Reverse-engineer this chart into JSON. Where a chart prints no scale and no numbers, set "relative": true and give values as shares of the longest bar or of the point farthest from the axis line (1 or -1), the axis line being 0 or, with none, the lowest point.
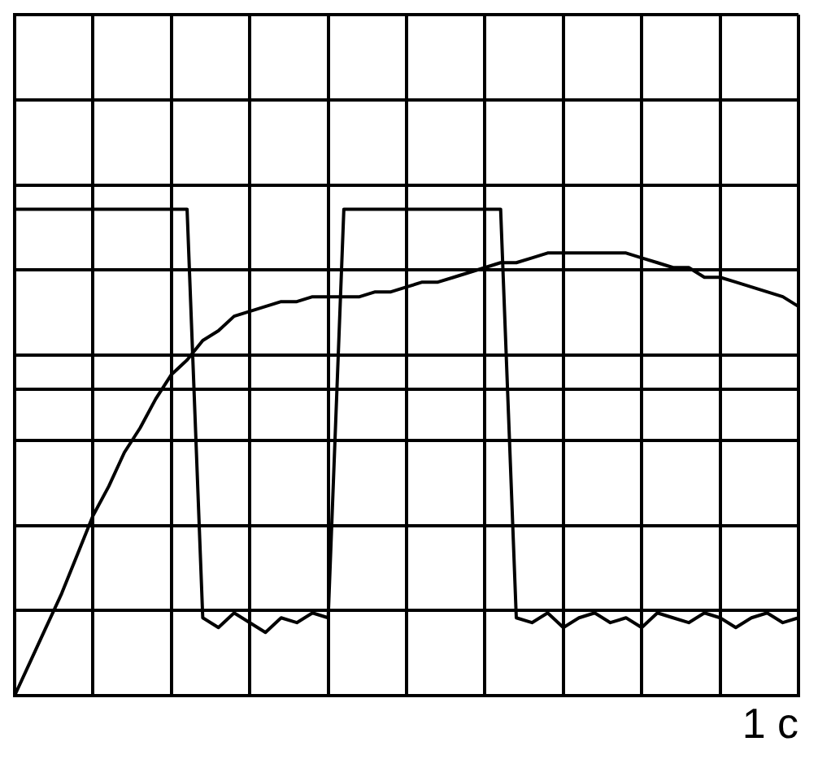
{
  "chart_data": {
    "type": "line",
    "relative": true,
    "grid": true,
    "legend": false,
    "marker": "none",
    "line_style": "solid",
    "categories": [
      null,
      null,
      null,
      null,
      null,
      null,
      null,
      null,
      null,
      null,
      null,
      null,
      null,
      null,
      null,
      null,
      null,
      null,
      null,
      null,
      null,
      null,
      null,
      null,
      null,
      null,
      null,
      null,
      null,
      null,
      null,
      null,
      null,
      null,
      null,
      null,
      null,
      null,
      null,
      null,
      null,
      null,
      null,
      null,
      null,
      null,
      null,
      null,
      null,
      null,
      null
    ],
    "series": [
      {
        "color": "#000000",
        "values": [
          1,
          1,
          1,
          1,
          1,
          1,
          1,
          1,
          1,
          1,
          1,
          1,
          0.16,
          0.14,
          0.17,
          0.15,
          0.13,
          0.16,
          0.15,
          0.17,
          0.16,
          1,
          1,
          1,
          1,
          1,
          1,
          1,
          1,
          1,
          1,
          1,
          0.16,
          0.15,
          0.17,
          0.14,
          0.16,
          0.17,
          0.15,
          0.16,
          0.14,
          0.17,
          0.16,
          0.15,
          0.17,
          0.16,
          0.14,
          0.16,
          0.17,
          0.15,
          0.16
        ]
      },
      {
        "color": "#000000",
        "values": [
          0,
          0.07,
          0.14,
          0.21,
          0.29,
          0.37,
          0.43,
          0.5,
          0.55,
          0.61,
          0.66,
          0.69,
          0.73,
          0.75,
          0.78,
          0.79,
          0.8,
          0.81,
          0.81,
          0.82,
          0.82,
          0.82,
          0.82,
          0.83,
          0.83,
          0.84,
          0.85,
          0.85,
          0.86,
          0.87,
          0.88,
          0.89,
          0.89,
          0.9,
          0.91,
          0.91,
          0.91,
          0.91,
          0.91,
          0.91,
          0.9,
          0.89,
          0.88,
          0.88,
          0.86,
          0.86,
          0.85,
          0.84,
          0.83,
          0.82,
          0.8
        ]
      }
    ],
    "ref_lines": [
      {
        "axis": "y",
        "value": 0.63,
        "color": "#000000"
      }
    ],
    "annotations": [
      "1 с"
    ]
  }
}
